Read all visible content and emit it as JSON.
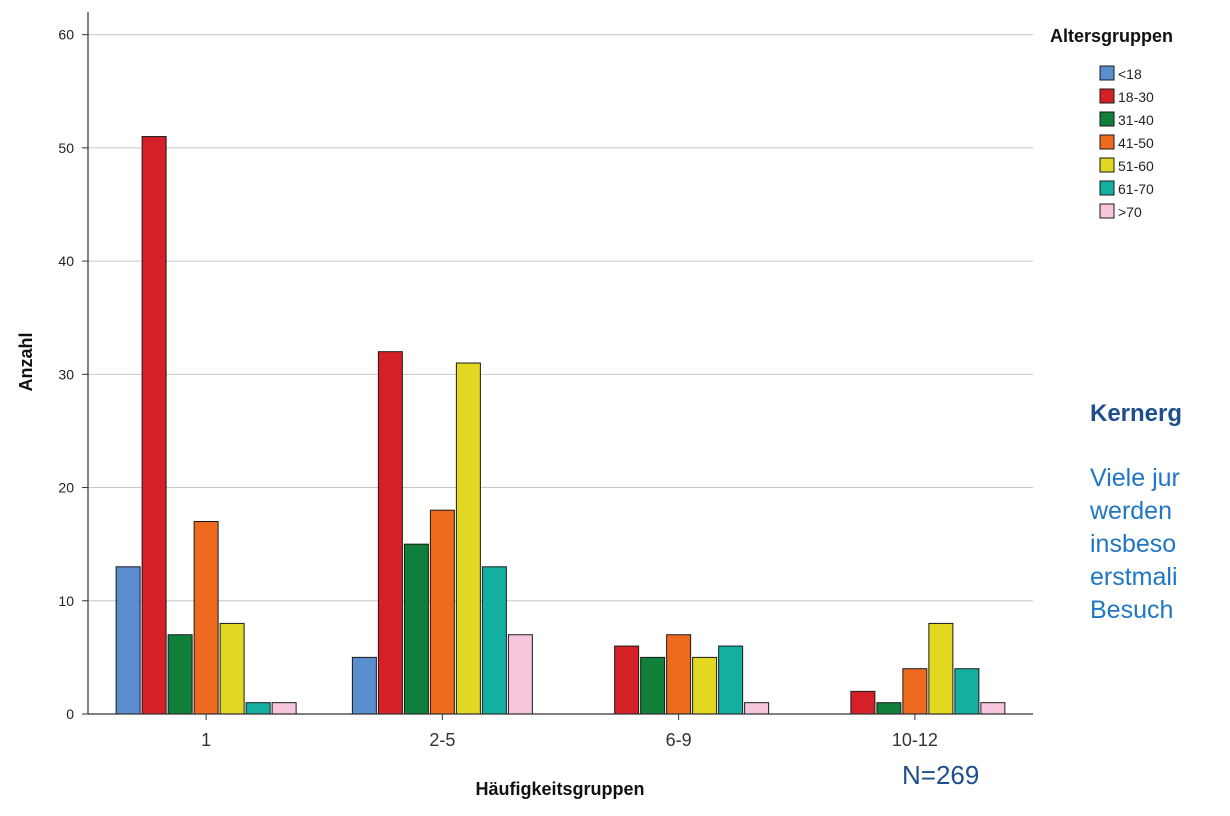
{
  "chart_data": {
    "type": "bar",
    "categories": [
      "1",
      "2-5",
      "6-9",
      "10-12"
    ],
    "xlabel": "Häufigkeitsgruppen",
    "ylabel": "Anzahl",
    "ylim": [
      0,
      62
    ],
    "yticks": [
      0,
      10,
      20,
      30,
      40,
      50,
      60
    ],
    "grid": true,
    "legend_title": "Altersgruppen",
    "legend_position": "top-right",
    "series": [
      {
        "name": "<18",
        "color": "#5b8ecf",
        "values": [
          13,
          5,
          0,
          0
        ]
      },
      {
        "name": "18-30",
        "color": "#d62027",
        "values": [
          51,
          32,
          6,
          2
        ]
      },
      {
        "name": "31-40",
        "color": "#0f7f3a",
        "values": [
          7,
          15,
          5,
          1
        ]
      },
      {
        "name": "41-50",
        "color": "#ee6a1f",
        "values": [
          17,
          18,
          7,
          4
        ]
      },
      {
        "name": "51-60",
        "color": "#e2d822",
        "values": [
          8,
          31,
          5,
          8
        ]
      },
      {
        "name": "61-70",
        "color": "#13b0a2",
        "values": [
          1,
          13,
          6,
          4
        ]
      },
      {
        "name": ">70",
        "color": "#f7c6dc",
        "values": [
          1,
          7,
          1,
          1
        ]
      }
    ],
    "annotation": "N=269"
  },
  "side_text": {
    "heading": "Kernerg",
    "lines": [
      "Viele jur",
      "werden",
      "insbeso",
      "erstmali",
      "Besuch"
    ]
  }
}
